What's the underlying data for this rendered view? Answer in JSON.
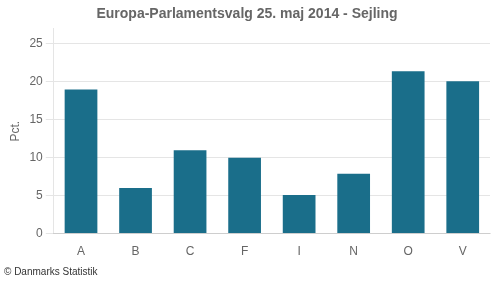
{
  "chart_data": {
    "type": "bar",
    "title": "Europa-Parlamentsvalg 25. maj 2014 - Sejling",
    "categories": [
      "A",
      "B",
      "C",
      "F",
      "I",
      "N",
      "O",
      "V"
    ],
    "values": [
      19.0,
      6.0,
      11.0,
      10.0,
      5.1,
      7.9,
      21.4,
      20.1
    ],
    "color": "#1a6e8a",
    "ylabel": "Pct.",
    "annotations": [
      "© Danmarks Statistik"
    ],
    "ylim": [
      0,
      27
    ],
    "yticks": [
      0,
      5,
      10,
      15,
      20,
      25
    ],
    "grid": true
  }
}
